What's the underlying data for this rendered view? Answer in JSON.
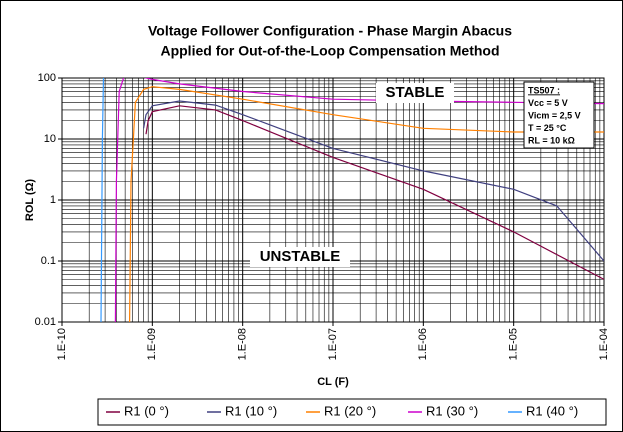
{
  "chart_data": {
    "type": "line",
    "title": [
      "Voltage Follower Configuration - Phase Margin Abacus",
      "Applied for Out-of-the-Loop Compensation Method"
    ],
    "x_label": "CL (F)",
    "y_label": "ROL (Ω)",
    "log_x": true,
    "log_y": true,
    "grid": true,
    "minor_grid": true,
    "legend": "bottom",
    "xlim": [
      1e-10,
      0.0001
    ],
    "xticks": [
      {
        "value": 1e-10,
        "label": "1.E-10"
      },
      {
        "value": 1e-09,
        "label": "1.E-09"
      },
      {
        "value": 1e-08,
        "label": "1.E-08"
      },
      {
        "value": 1e-07,
        "label": "1.E-07"
      },
      {
        "value": 1e-06,
        "label": "1.E-06"
      },
      {
        "value": 1e-05,
        "label": "1.E-05"
      },
      {
        "value": 0.0001,
        "label": "1.E-04"
      }
    ],
    "ylim": [
      0.01,
      100
    ],
    "yticks": [
      0.01,
      0.1,
      1,
      10,
      100
    ],
    "annotations": [
      "STABLE",
      "UNSTABLE"
    ],
    "info_box": [
      "TS507 :",
      "Vcc = 5 V",
      "Vicm = 2,5 V",
      "T = 25 °C",
      "RL = 10 kΩ"
    ],
    "series": [
      {
        "name": "R1 (0 °)",
        "color": "#800040",
        "x": [
          8.5e-10,
          9e-10,
          1e-09,
          2e-09,
          5e-09,
          1e-08,
          1e-07,
          1e-06,
          1e-05,
          0.0001
        ],
        "values": [
          12,
          20,
          28,
          35,
          30,
          20,
          5,
          1.5,
          0.3,
          0.05
        ]
      },
      {
        "name": "R1 (10 °)",
        "color": "#404080",
        "x": [
          8e-10,
          8.5e-10,
          1e-09,
          2e-09,
          5e-09,
          1e-08,
          1e-07,
          1e-06,
          1e-05,
          3e-05,
          0.0001
        ],
        "values": [
          15,
          25,
          35,
          42,
          36,
          25,
          7,
          3,
          1.5,
          0.8,
          0.1
        ]
      },
      {
        "name": "R1 (20 °)",
        "color": "#ff8000",
        "x": [
          5.6e-10,
          5.8e-10,
          6.5e-10,
          8e-10,
          1e-09,
          2e-09,
          1e-08,
          1e-07,
          1e-06,
          1e-05,
          0.0001
        ],
        "values": [
          0.01,
          2,
          40,
          65,
          72,
          65,
          45,
          25,
          15,
          13,
          13
        ]
      },
      {
        "name": "R1 (30 °)",
        "color": "#cc00cc",
        "x": [
          3.9e-10,
          4e-10,
          4.3e-10,
          5e-10,
          1e-09,
          2e-09,
          1e-08,
          1e-07,
          1e-06,
          1e-05,
          0.0001
        ],
        "values": [
          0.01,
          2,
          60,
          120,
          95,
          80,
          60,
          45,
          42,
          40,
          38
        ]
      },
      {
        "name": "R1 (40 °)",
        "color": "#3399ff",
        "x": [
          2.7e-10,
          2.8e-10,
          2.9e-10
        ],
        "values": [
          0.01,
          10,
          200
        ]
      }
    ]
  }
}
